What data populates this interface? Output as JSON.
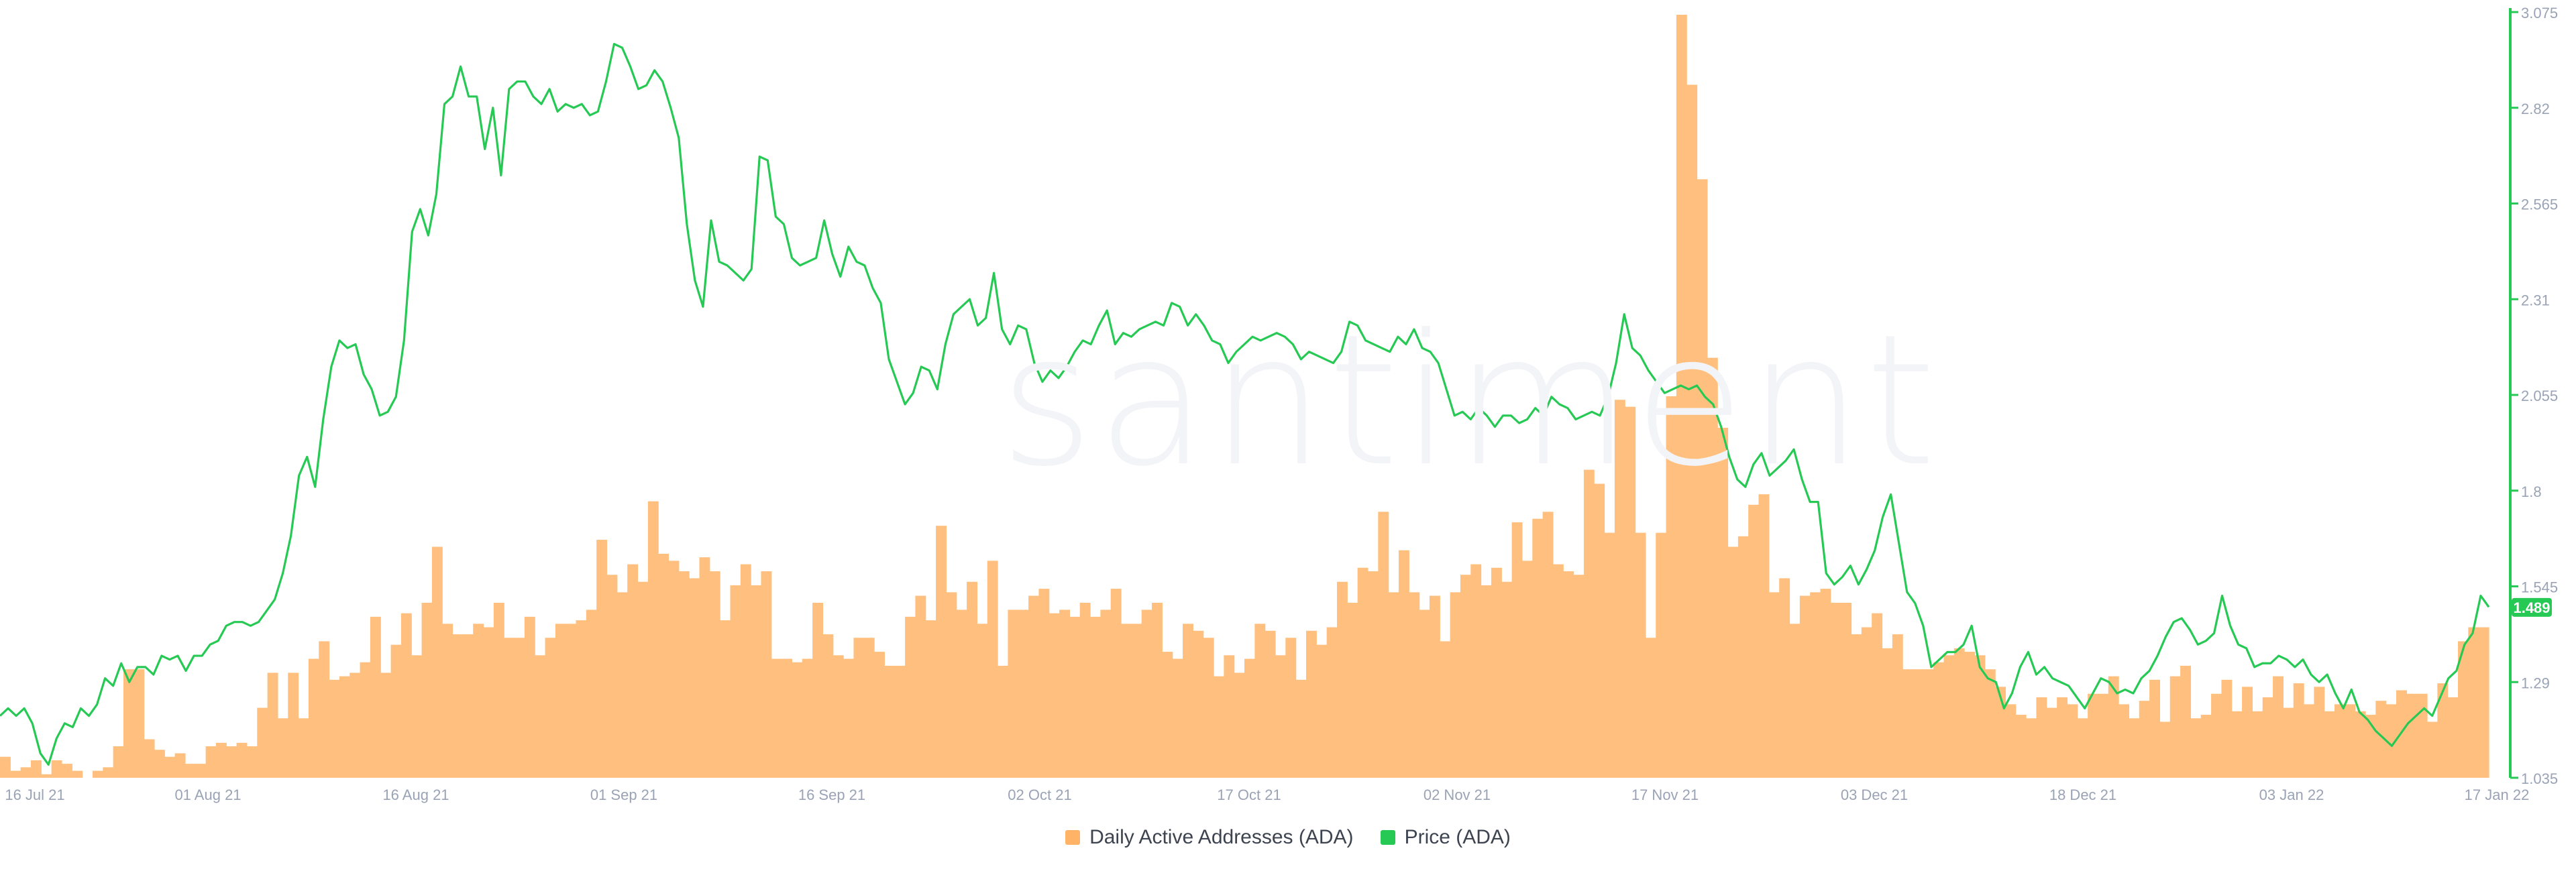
{
  "watermark": "santiment",
  "legend": {
    "bars_label": "Daily Active Addresses (ADA)",
    "line_label": "Price (ADA)"
  },
  "colors": {
    "bars": "#ffc07f",
    "line": "#26c953",
    "axis": "#9aa3b5",
    "axisLine": "#26c953"
  },
  "chart_data": {
    "type": "bar+line",
    "x_tick_labels": [
      "16 Jul 21",
      "01 Aug 21",
      "16 Aug 21",
      "01 Sep 21",
      "16 Sep 21",
      "02 Oct 21",
      "17 Oct 21",
      "02 Nov 21",
      "17 Nov 21",
      "03 Dec 21",
      "18 Dec 21",
      "03 Jan 22",
      "17 Jan 22"
    ],
    "y_right_ticks": [
      "3.075",
      "2.82",
      "2.565",
      "2.31",
      "2.055",
      "1.8",
      "1.545",
      "1.29",
      "1.035"
    ],
    "y_right_range": [
      1.035,
      3.075
    ],
    "current_price_label": "1.489",
    "series": [
      {
        "name": "Daily Active Addresses (ADA)",
        "kind": "bar",
        "unit": "relative (0-100, axis not shown)",
        "values": [
          6,
          2,
          3,
          5,
          1,
          5,
          4,
          2,
          0,
          2,
          3,
          9,
          31,
          31,
          11,
          8,
          6,
          7,
          4,
          4,
          9,
          10,
          9,
          10,
          9,
          20,
          30,
          17,
          30,
          17,
          34,
          39,
          28,
          29,
          30,
          33,
          46,
          30,
          38,
          47,
          35,
          50,
          66,
          44,
          41,
          41,
          44,
          43,
          50,
          40,
          40,
          46,
          35,
          40,
          44,
          44,
          45,
          48,
          68,
          58,
          53,
          61,
          56,
          79,
          64,
          62,
          59,
          57,
          63,
          59,
          45,
          55,
          61,
          55,
          59,
          34,
          34,
          33,
          34,
          50,
          41,
          35,
          34,
          40,
          40,
          36,
          32,
          32,
          46,
          52,
          45,
          72,
          53,
          48,
          56,
          44,
          62,
          32,
          48,
          48,
          52,
          54,
          47,
          48,
          46,
          50,
          46,
          48,
          54,
          44,
          44,
          48,
          50,
          36,
          34,
          44,
          42,
          40,
          29,
          35,
          30,
          34,
          44,
          42,
          35,
          40,
          28,
          42,
          38,
          43,
          56,
          50,
          60,
          59,
          76,
          53,
          65,
          53,
          48,
          52,
          39,
          53,
          58,
          61,
          55,
          60,
          56,
          73,
          62,
          74,
          76,
          61,
          59,
          58,
          88,
          84,
          70,
          108,
          106,
          70,
          40,
          70,
          109,
          218,
          198,
          171,
          120,
          100,
          66,
          69,
          78,
          81,
          53,
          57,
          44,
          52,
          53,
          54,
          50,
          50,
          41,
          43,
          47,
          37,
          41,
          31,
          31,
          31,
          33,
          35,
          37,
          36,
          35,
          31,
          26,
          21,
          18,
          17,
          23,
          20,
          23,
          21,
          17,
          24,
          24,
          29,
          21,
          17,
          22,
          28,
          16,
          29,
          32,
          17,
          18,
          24,
          28,
          19,
          26,
          19,
          23,
          29,
          20,
          27,
          21,
          26,
          19,
          21,
          21,
          19,
          18,
          22,
          21,
          25,
          24,
          24,
          16,
          27,
          23,
          39,
          43,
          43
        ]
      },
      {
        "name": "Price (ADA)",
        "kind": "line",
        "unit": "USD",
        "values": [
          1.2,
          1.22,
          1.2,
          1.22,
          1.18,
          1.1,
          1.07,
          1.14,
          1.18,
          1.17,
          1.22,
          1.2,
          1.23,
          1.3,
          1.28,
          1.34,
          1.29,
          1.33,
          1.33,
          1.31,
          1.36,
          1.35,
          1.36,
          1.32,
          1.36,
          1.36,
          1.39,
          1.4,
          1.44,
          1.45,
          1.45,
          1.44,
          1.45,
          1.48,
          1.51,
          1.58,
          1.68,
          1.84,
          1.89,
          1.81,
          1.99,
          2.13,
          2.2,
          2.18,
          2.19,
          2.11,
          2.07,
          2.0,
          2.01,
          2.05,
          2.2,
          2.49,
          2.55,
          2.48,
          2.59,
          2.83,
          2.85,
          2.93,
          2.85,
          2.85,
          2.71,
          2.82,
          2.64,
          2.87,
          2.89,
          2.89,
          2.85,
          2.83,
          2.87,
          2.81,
          2.83,
          2.82,
          2.83,
          2.8,
          2.81,
          2.89,
          2.99,
          2.98,
          2.93,
          2.87,
          2.88,
          2.92,
          2.89,
          2.82,
          2.74,
          2.51,
          2.36,
          2.29,
          2.52,
          2.41,
          2.4,
          2.38,
          2.36,
          2.39,
          2.69,
          2.68,
          2.53,
          2.51,
          2.42,
          2.4,
          2.41,
          2.42,
          2.52,
          2.43,
          2.37,
          2.45,
          2.41,
          2.4,
          2.34,
          2.3,
          2.15,
          2.09,
          2.03,
          2.06,
          2.13,
          2.12,
          2.07,
          2.19,
          2.27,
          2.29,
          2.31,
          2.24,
          2.26,
          2.38,
          2.23,
          2.19,
          2.24,
          2.23,
          2.14,
          2.09,
          2.12,
          2.1,
          2.13,
          2.17,
          2.2,
          2.19,
          2.24,
          2.28,
          2.19,
          2.22,
          2.21,
          2.23,
          2.24,
          2.25,
          2.24,
          2.3,
          2.29,
          2.24,
          2.27,
          2.24,
          2.2,
          2.19,
          2.14,
          2.17,
          2.19,
          2.21,
          2.2,
          2.21,
          2.22,
          2.21,
          2.19,
          2.15,
          2.17,
          2.16,
          2.15,
          2.14,
          2.17,
          2.25,
          2.24,
          2.2,
          2.19,
          2.18,
          2.17,
          2.21,
          2.19,
          2.23,
          2.18,
          2.17,
          2.14,
          2.07,
          2.0,
          2.01,
          1.99,
          2.02,
          2.0,
          1.97,
          2.0,
          2.0,
          1.98,
          1.99,
          2.02,
          2.0,
          2.05,
          2.03,
          2.02,
          1.99,
          2.0,
          2.01,
          2.0,
          2.05,
          2.14,
          2.27,
          2.18,
          2.16,
          2.12,
          2.09,
          2.06,
          2.07,
          2.08,
          2.07,
          2.08,
          2.05,
          2.03,
          1.97,
          1.89,
          1.83,
          1.81,
          1.87,
          1.9,
          1.84,
          1.86,
          1.88,
          1.91,
          1.83,
          1.77,
          1.77,
          1.58,
          1.55,
          1.57,
          1.6,
          1.55,
          1.59,
          1.64,
          1.73,
          1.79,
          1.66,
          1.53,
          1.5,
          1.44,
          1.33,
          1.35,
          1.37,
          1.37,
          1.39,
          1.44,
          1.33,
          1.3,
          1.29,
          1.22,
          1.26,
          1.33,
          1.37,
          1.31,
          1.33,
          1.3,
          1.29,
          1.28,
          1.25,
          1.22,
          1.26,
          1.3,
          1.29,
          1.26,
          1.27,
          1.26,
          1.3,
          1.32,
          1.36,
          1.41,
          1.45,
          1.46,
          1.43,
          1.39,
          1.4,
          1.42,
          1.52,
          1.44,
          1.39,
          1.38,
          1.33,
          1.34,
          1.34,
          1.36,
          1.35,
          1.33,
          1.35,
          1.31,
          1.29,
          1.31,
          1.26,
          1.22,
          1.27,
          1.21,
          1.19,
          1.16,
          1.14,
          1.12,
          1.15,
          1.18,
          1.2,
          1.22,
          1.2,
          1.25,
          1.3,
          1.32,
          1.39,
          1.42,
          1.52,
          1.49
        ]
      }
    ],
    "grid": false,
    "legend_position": "bottom-center"
  }
}
